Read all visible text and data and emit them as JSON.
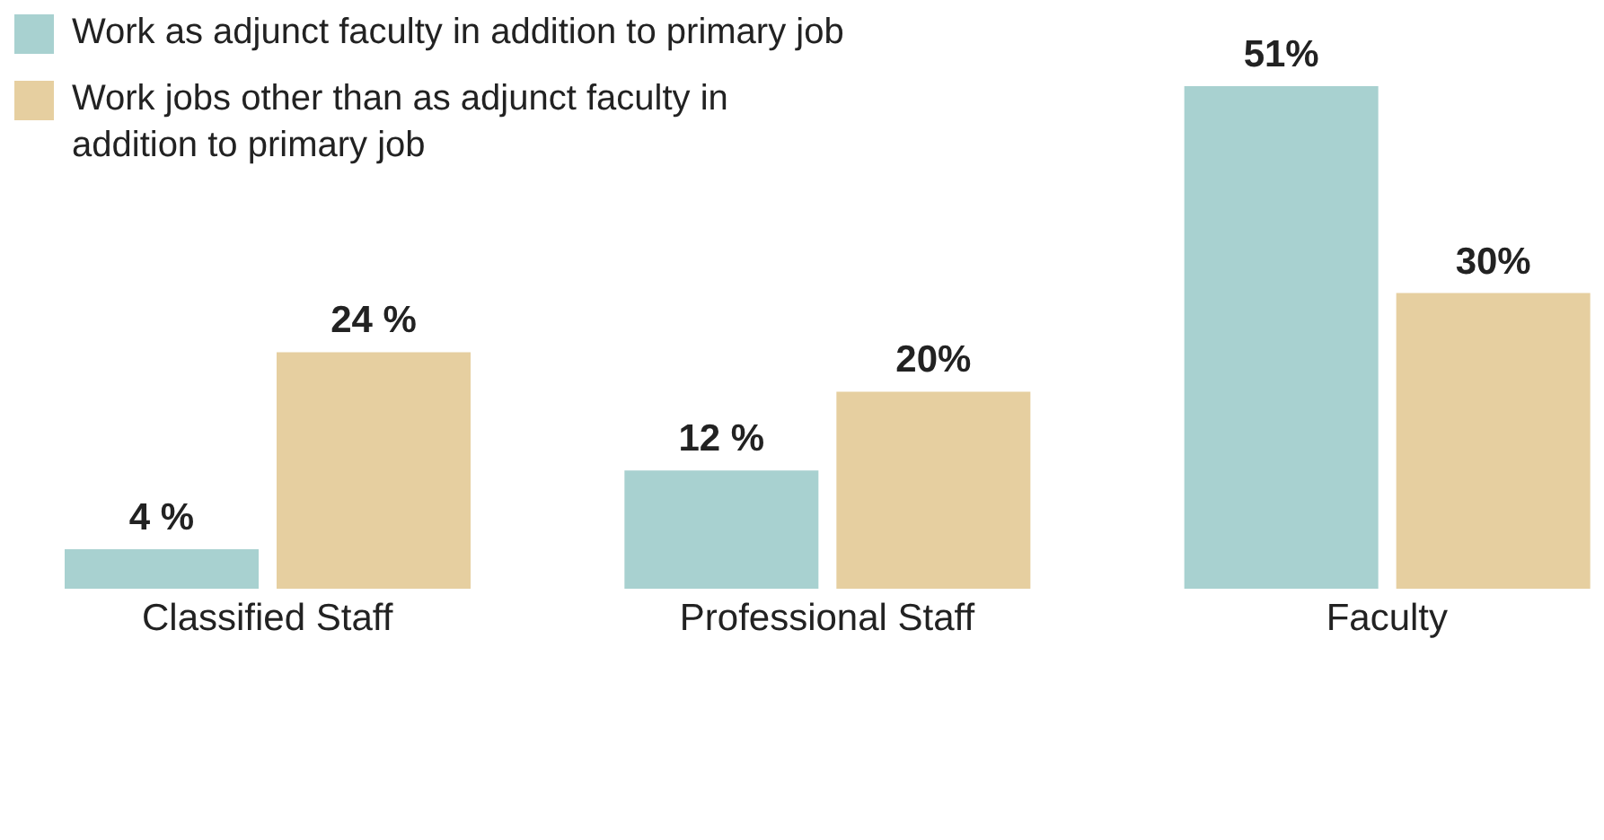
{
  "chart_data": {
    "type": "bar",
    "categories": [
      "Classified Staff",
      "Professional Staff",
      "Faculty"
    ],
    "series": [
      {
        "name": "Work as adjunct faculty in addition to primary job",
        "color": "#a8d1d0",
        "values": [
          4,
          12,
          51
        ],
        "value_labels": [
          "4 %",
          "12 %",
          "51%"
        ]
      },
      {
        "name": "Work jobs other than as adjunct faculty in addition to primary job",
        "color": "#e6cfa0",
        "values": [
          24,
          20,
          30
        ],
        "value_labels": [
          "24 %",
          "20%",
          "30%"
        ]
      }
    ],
    "legend": "top left"
  }
}
